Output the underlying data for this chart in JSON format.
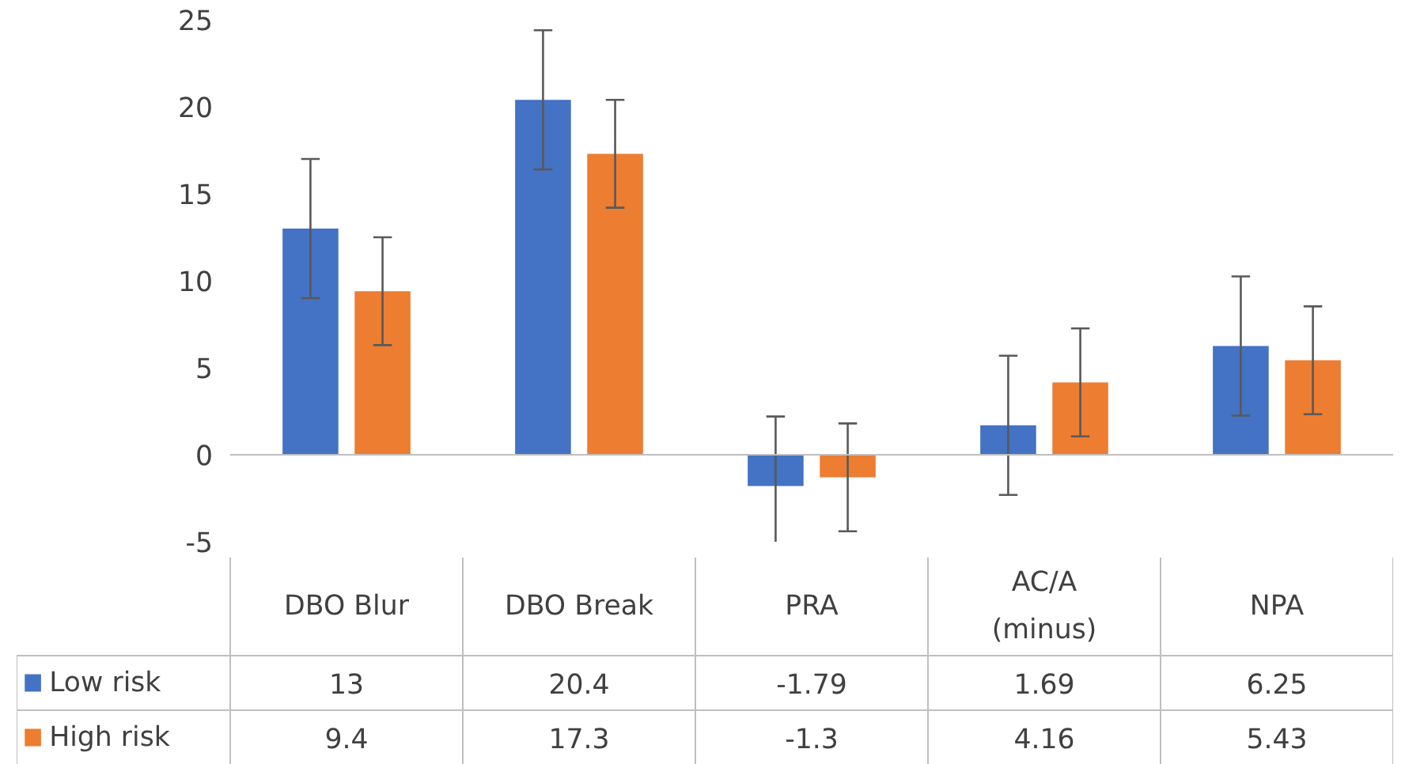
{
  "chart_data": {
    "type": "bar",
    "categories": [
      "DBO Blur",
      "DBO Break",
      "PRA",
      "AC/A\n(minus)",
      "NPA"
    ],
    "series": [
      {
        "name": "Low risk",
        "color": "#4472c4",
        "values": [
          13,
          20.4,
          -1.79,
          1.69,
          6.25
        ],
        "errors": [
          4,
          4,
          [
            -5,
            2.2
          ],
          4,
          4
        ]
      },
      {
        "name": "High  risk",
        "color": "#ed7d31",
        "values": [
          9.4,
          17.3,
          -1.3,
          4.16,
          5.43
        ],
        "errors": [
          3.1,
          3.1,
          3.1,
          3.1,
          3.1
        ]
      }
    ],
    "ylim": [
      -5,
      25
    ],
    "yticks": [
      -5,
      0,
      5,
      10,
      15,
      20,
      25
    ],
    "data_labels": true,
    "legend": "bottom left"
  }
}
